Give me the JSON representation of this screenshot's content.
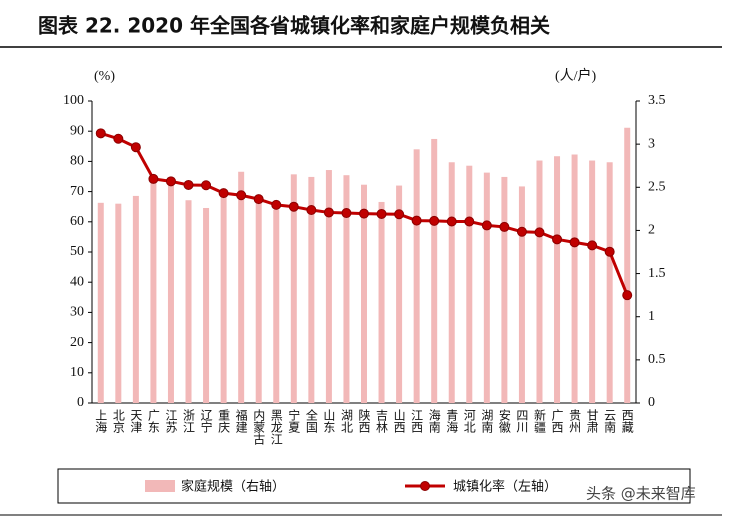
{
  "chart_data": {
    "type": "combo",
    "title": "图表 22. 2020 年全国各省城镇化率和家庭户规模负相关",
    "ylabel": "(%)",
    "y2label": "(人/户)",
    "categories": [
      "上海",
      "北京",
      "天津",
      "广东",
      "江苏",
      "浙江",
      "辽宁",
      "重庆",
      "福建",
      "内蒙古",
      "黑龙江",
      "宁夏",
      "全国",
      "山东",
      "湖北",
      "陕西",
      "吉林",
      "山西",
      "江西",
      "海南",
      "青海",
      "河北",
      "湖南",
      "安徽",
      "四川",
      "新疆",
      "广西",
      "贵州",
      "甘肃",
      "云南",
      "西藏"
    ],
    "series": [
      {
        "name": "家庭规模（右轴）",
        "type": "bar",
        "axis": "y2",
        "color": "#f2b8b8",
        "values": [
          2.32,
          2.31,
          2.4,
          2.63,
          2.6,
          2.35,
          2.26,
          2.45,
          2.68,
          2.33,
          2.24,
          2.65,
          2.62,
          2.7,
          2.64,
          2.53,
          2.33,
          2.52,
          2.94,
          3.06,
          2.79,
          2.75,
          2.67,
          2.62,
          2.51,
          2.81,
          2.86,
          2.88,
          2.81,
          2.79,
          3.19
        ]
      },
      {
        "name": "城镇化率（左轴）",
        "type": "line",
        "color": "#c00000",
        "values": [
          89.3,
          87.5,
          84.7,
          74.2,
          73.4,
          72.2,
          72.1,
          69.5,
          68.8,
          67.5,
          65.6,
          65.0,
          63.9,
          63.1,
          62.9,
          62.7,
          62.6,
          62.5,
          60.4,
          60.3,
          60.1,
          60.1,
          58.8,
          58.3,
          56.7,
          56.5,
          54.2,
          53.2,
          52.2,
          50.1,
          35.7
        ]
      }
    ],
    "ylim": [
      0,
      100
    ],
    "yticks": [
      0,
      10,
      20,
      30,
      40,
      50,
      60,
      70,
      80,
      90,
      100
    ],
    "y2lim": [
      0,
      3.5
    ],
    "y2ticks": [
      0,
      0.5,
      1,
      1.5,
      2,
      2.5,
      3,
      3.5
    ],
    "watermark": "头条 @未来智库"
  }
}
